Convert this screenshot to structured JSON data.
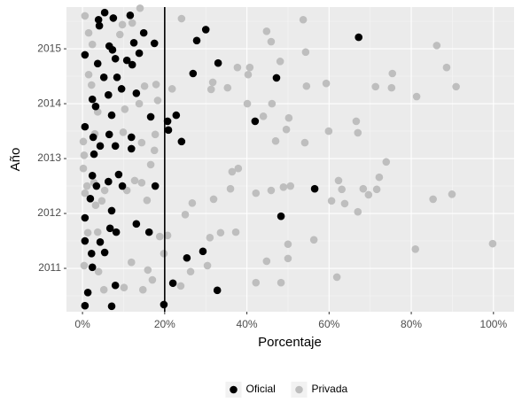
{
  "chart_data": {
    "type": "scatter",
    "x_label": "Porcentaje",
    "y_label": "Año",
    "xlim": [
      -3.9,
      105
    ],
    "ylim": [
      2010.21,
      2015.76
    ],
    "xticks": [
      {
        "value": 0,
        "label": "0%"
      },
      {
        "value": 20,
        "label": "20%"
      },
      {
        "value": 40,
        "label": "40%"
      },
      {
        "value": 60,
        "label": "60%"
      },
      {
        "value": 80,
        "label": "80%"
      },
      {
        "value": 100,
        "label": "100%"
      }
    ],
    "yticks": [
      2011,
      2012,
      2013,
      2014,
      2015
    ],
    "grid": true,
    "legend": "bottom",
    "vline": 20,
    "vline_color": "#000000",
    "series": [
      {
        "name": "Oficial",
        "color": "#000000",
        "x": [
          5.4,
          3.9,
          7.5,
          11.6,
          4.1,
          12.5,
          14.9,
          17.5,
          6.5,
          7.3,
          30.0,
          27.8,
          13.8,
          8.0,
          10.8,
          12.1,
          33.0,
          26.9,
          47.2,
          67.2,
          0.6,
          3.7,
          5.2,
          8.4,
          9.5,
          6.3,
          2.4,
          13.1,
          3.2,
          7.1,
          0.6,
          2.6,
          6.5,
          11.9,
          16.6,
          22.8,
          20.7,
          20.9,
          24.1,
          42.0,
          4.3,
          8.0,
          11.9,
          2.8,
          8.8,
          6.3,
          2.4,
          3.4,
          9.7,
          1.9,
          17.7,
          56.5,
          48.3,
          0.6,
          7.1,
          6.7,
          8.2,
          13.1,
          16.2,
          0.6,
          4.3,
          2.2,
          5.4,
          29.3,
          25.4,
          2.4,
          8.0,
          32.8,
          1.3,
          22.0,
          7.1,
          19.8,
          0.6
        ],
        "values": [
          2015.66,
          2015.53,
          2015.56,
          2015.61,
          2015.42,
          2015.11,
          2015.29,
          2015.1,
          2015.05,
          2014.98,
          2015.35,
          2015.15,
          2014.92,
          2014.82,
          2014.79,
          2014.71,
          2014.74,
          2014.55,
          2014.47,
          2015.21,
          2014.89,
          2014.73,
          2014.48,
          2014.48,
          2014.27,
          2014.16,
          2014.08,
          2014.19,
          2013.95,
          2013.79,
          2013.58,
          2013.39,
          2013.44,
          2013.39,
          2013.76,
          2013.79,
          2013.68,
          2013.52,
          2013.31,
          2013.68,
          2013.23,
          2013.23,
          2013.18,
          2013.08,
          2012.71,
          2012.58,
          2012.69,
          2012.5,
          2012.5,
          2012.27,
          2012.5,
          2012.45,
          2011.95,
          2011.92,
          2012.05,
          2011.73,
          2011.66,
          2011.81,
          2011.66,
          2011.5,
          2011.48,
          2011.27,
          2011.29,
          2011.31,
          2011.19,
          2011.02,
          2010.69,
          2010.6,
          2010.56,
          2010.73,
          2010.31,
          2010.34,
          2010.32
        ]
      },
      {
        "name": "Privada",
        "color": "#bebebe",
        "x": [
          14.0,
          24.1,
          53.7,
          44.8,
          45.9,
          86.2,
          48.1,
          37.7,
          40.7,
          54.3,
          88.6,
          90.9,
          81.3,
          75.4,
          75.2,
          71.3,
          59.3,
          54.5,
          40.3,
          31.7,
          31.3,
          35.3,
          40.1,
          46.1,
          44.0,
          50.2,
          49.6,
          54.1,
          47.0,
          59.9,
          66.6,
          67.0,
          73.9,
          72.2,
          71.6,
          68.3,
          63.1,
          60.6,
          63.8,
          67.0,
          69.6,
          62.3,
          85.3,
          89.9,
          48.9,
          50.6,
          45.9,
          42.2,
          36.4,
          37.9,
          31.9,
          25.0,
          26.7,
          36.0,
          37.3,
          33.6,
          56.3,
          50.0,
          44.8,
          50.0,
          99.8,
          81.0,
          61.9,
          48.3,
          42.2,
          30.4,
          26.3,
          23.9,
          31.0,
          20.7,
          18.8,
          19.8,
          15.9,
          14.7,
          11.9,
          10.1,
          15.7,
          14.4,
          12.7,
          10.8,
          16.6,
          17.5,
          14.4,
          17.7,
          18.3,
          13.8,
          17.9,
          15.1,
          21.8,
          10.3,
          3.7,
          3.0,
          9.9,
          9.1,
          9.7,
          12.1,
          1.5,
          2.4,
          0.6,
          1.5,
          2.2,
          2.8,
          1.1,
          0.6,
          5.4,
          4.7,
          3.2,
          3.7,
          1.3,
          5.2,
          3.9,
          17.0,
          0.2,
          0.4,
          0.2,
          0.4
        ],
        "values": [
          2015.74,
          2015.55,
          2015.53,
          2015.32,
          2015.13,
          2015.06,
          2014.77,
          2014.66,
          2014.66,
          2014.94,
          2014.66,
          2014.31,
          2014.13,
          2014.55,
          2014.29,
          2014.31,
          2014.37,
          2014.32,
          2014.53,
          2014.39,
          2014.26,
          2014.29,
          2014.0,
          2014.0,
          2013.77,
          2013.74,
          2013.53,
          2013.29,
          2013.32,
          2013.5,
          2013.68,
          2013.47,
          2012.94,
          2012.66,
          2012.44,
          2012.45,
          2012.44,
          2012.23,
          2012.18,
          2012.03,
          2012.34,
          2012.6,
          2012.26,
          2012.35,
          2012.48,
          2012.5,
          2012.42,
          2012.37,
          2012.76,
          2012.82,
          2012.26,
          2011.98,
          2012.19,
          2012.45,
          2011.66,
          2011.65,
          2011.52,
          2011.44,
          2011.13,
          2011.18,
          2011.45,
          2011.35,
          2010.84,
          2010.74,
          2010.74,
          2011.05,
          2010.94,
          2010.68,
          2011.56,
          2011.6,
          2011.58,
          2011.27,
          2010.97,
          2010.61,
          2011.11,
          2010.65,
          2012.24,
          2012.56,
          2012.6,
          2012.42,
          2012.89,
          2013.15,
          2013.29,
          2013.44,
          2014.06,
          2014.0,
          2014.35,
          2014.32,
          2014.27,
          2013.9,
          2013.85,
          2013.45,
          2013.48,
          2015.26,
          2015.44,
          2015.47,
          2015.29,
          2015.08,
          2015.6,
          2014.53,
          2014.34,
          2012.56,
          2012.5,
          2012.37,
          2012.42,
          2012.23,
          2012.15,
          2011.66,
          2011.65,
          2010.61,
          2010.94,
          2010.79,
          2012.82,
          2013.06,
          2013.31,
          2011.05
        ]
      }
    ]
  }
}
